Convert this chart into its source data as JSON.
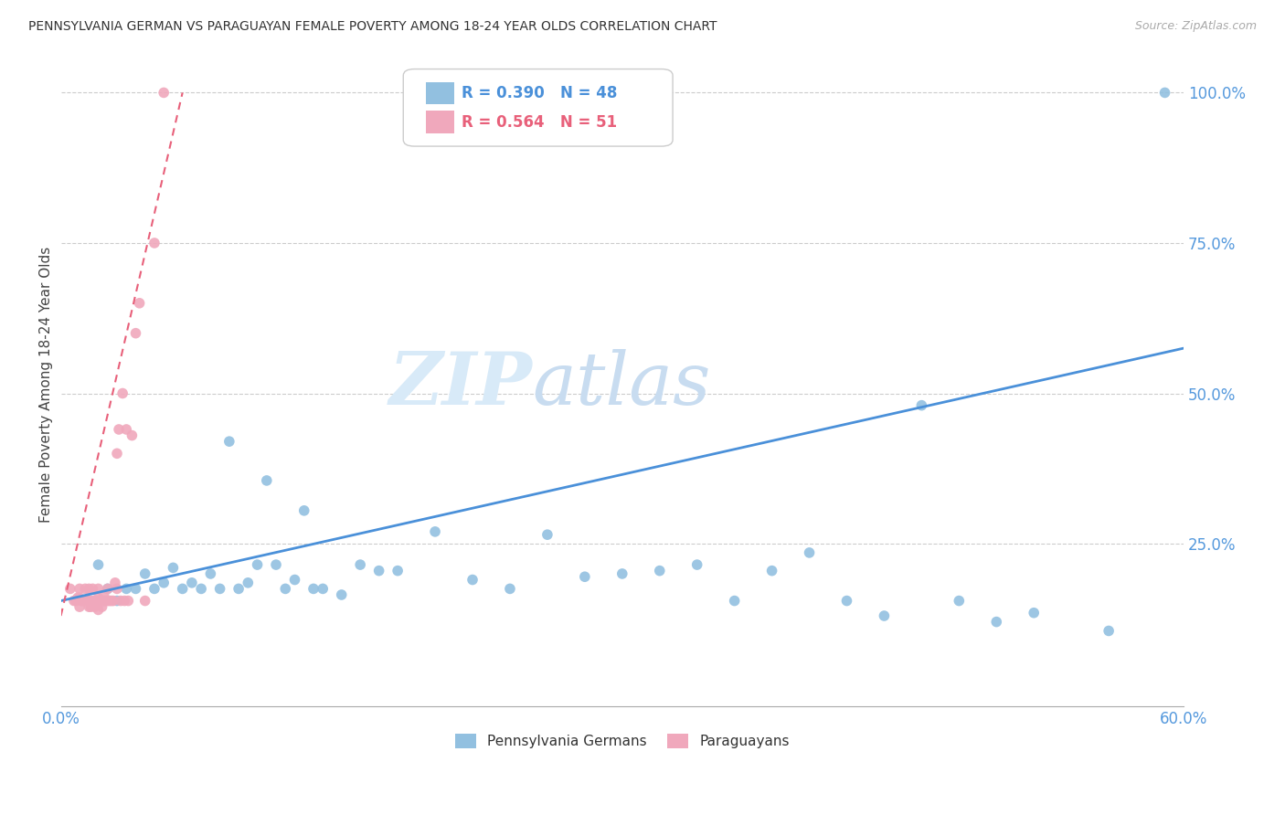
{
  "title": "PENNSYLVANIA GERMAN VS PARAGUAYAN FEMALE POVERTY AMONG 18-24 YEAR OLDS CORRELATION CHART",
  "source": "Source: ZipAtlas.com",
  "ylabel": "Female Poverty Among 18-24 Year Olds",
  "xlim": [
    0.0,
    0.6
  ],
  "ylim": [
    -0.02,
    1.05
  ],
  "blue_R": 0.39,
  "blue_N": 48,
  "pink_R": 0.564,
  "pink_N": 51,
  "blue_color": "#92C0E0",
  "pink_color": "#F0A8BC",
  "blue_line_color": "#4A90D9",
  "pink_line_color": "#E8607A",
  "watermark_zip": "ZIP",
  "watermark_atlas": "atlas",
  "blue_points_x": [
    0.02,
    0.025,
    0.03,
    0.035,
    0.04,
    0.045,
    0.05,
    0.055,
    0.06,
    0.065,
    0.07,
    0.075,
    0.08,
    0.085,
    0.09,
    0.095,
    0.1,
    0.105,
    0.11,
    0.115,
    0.12,
    0.125,
    0.13,
    0.135,
    0.14,
    0.15,
    0.16,
    0.17,
    0.18,
    0.2,
    0.22,
    0.24,
    0.26,
    0.28,
    0.3,
    0.32,
    0.34,
    0.36,
    0.38,
    0.4,
    0.42,
    0.44,
    0.46,
    0.48,
    0.5,
    0.52,
    0.56,
    0.59
  ],
  "blue_points_y": [
    0.215,
    0.175,
    0.155,
    0.175,
    0.175,
    0.2,
    0.175,
    0.185,
    0.21,
    0.175,
    0.185,
    0.175,
    0.2,
    0.175,
    0.42,
    0.175,
    0.185,
    0.215,
    0.355,
    0.215,
    0.175,
    0.19,
    0.305,
    0.175,
    0.175,
    0.165,
    0.215,
    0.205,
    0.205,
    0.27,
    0.19,
    0.175,
    0.265,
    0.195,
    0.2,
    0.205,
    0.215,
    0.155,
    0.205,
    0.235,
    0.155,
    0.13,
    0.48,
    0.155,
    0.12,
    0.135,
    0.105,
    1.0
  ],
  "pink_points_x": [
    0.005,
    0.007,
    0.008,
    0.009,
    0.01,
    0.01,
    0.01,
    0.011,
    0.012,
    0.013,
    0.013,
    0.014,
    0.015,
    0.015,
    0.015,
    0.016,
    0.016,
    0.017,
    0.017,
    0.018,
    0.018,
    0.019,
    0.02,
    0.02,
    0.02,
    0.021,
    0.022,
    0.022,
    0.023,
    0.023,
    0.024,
    0.025,
    0.025,
    0.026,
    0.027,
    0.028,
    0.029,
    0.03,
    0.03,
    0.031,
    0.032,
    0.033,
    0.034,
    0.035,
    0.036,
    0.038,
    0.04,
    0.042,
    0.045,
    0.05,
    0.055
  ],
  "pink_points_y": [
    0.175,
    0.155,
    0.155,
    0.16,
    0.145,
    0.16,
    0.175,
    0.155,
    0.155,
    0.155,
    0.175,
    0.155,
    0.145,
    0.155,
    0.175,
    0.145,
    0.155,
    0.155,
    0.175,
    0.145,
    0.155,
    0.155,
    0.14,
    0.16,
    0.175,
    0.155,
    0.145,
    0.155,
    0.155,
    0.165,
    0.155,
    0.155,
    0.175,
    0.155,
    0.155,
    0.155,
    0.185,
    0.4,
    0.175,
    0.44,
    0.155,
    0.5,
    0.155,
    0.44,
    0.155,
    0.43,
    0.6,
    0.65,
    0.155,
    0.75,
    1.0
  ],
  "blue_trend_x": [
    0.0,
    0.6
  ],
  "blue_trend_y": [
    0.155,
    0.575
  ],
  "pink_trend_x": [
    0.0,
    0.065
  ],
  "pink_trend_y": [
    0.13,
    1.0
  ],
  "legend_blue_label": "R = 0.390   N = 48",
  "legend_pink_label": "R = 0.564   N = 51",
  "legend_blue_label_R": "R = 0.390",
  "legend_blue_label_N": "N = 48",
  "legend_pink_label_R": "R = 0.564",
  "legend_pink_label_N": "N = 51"
}
